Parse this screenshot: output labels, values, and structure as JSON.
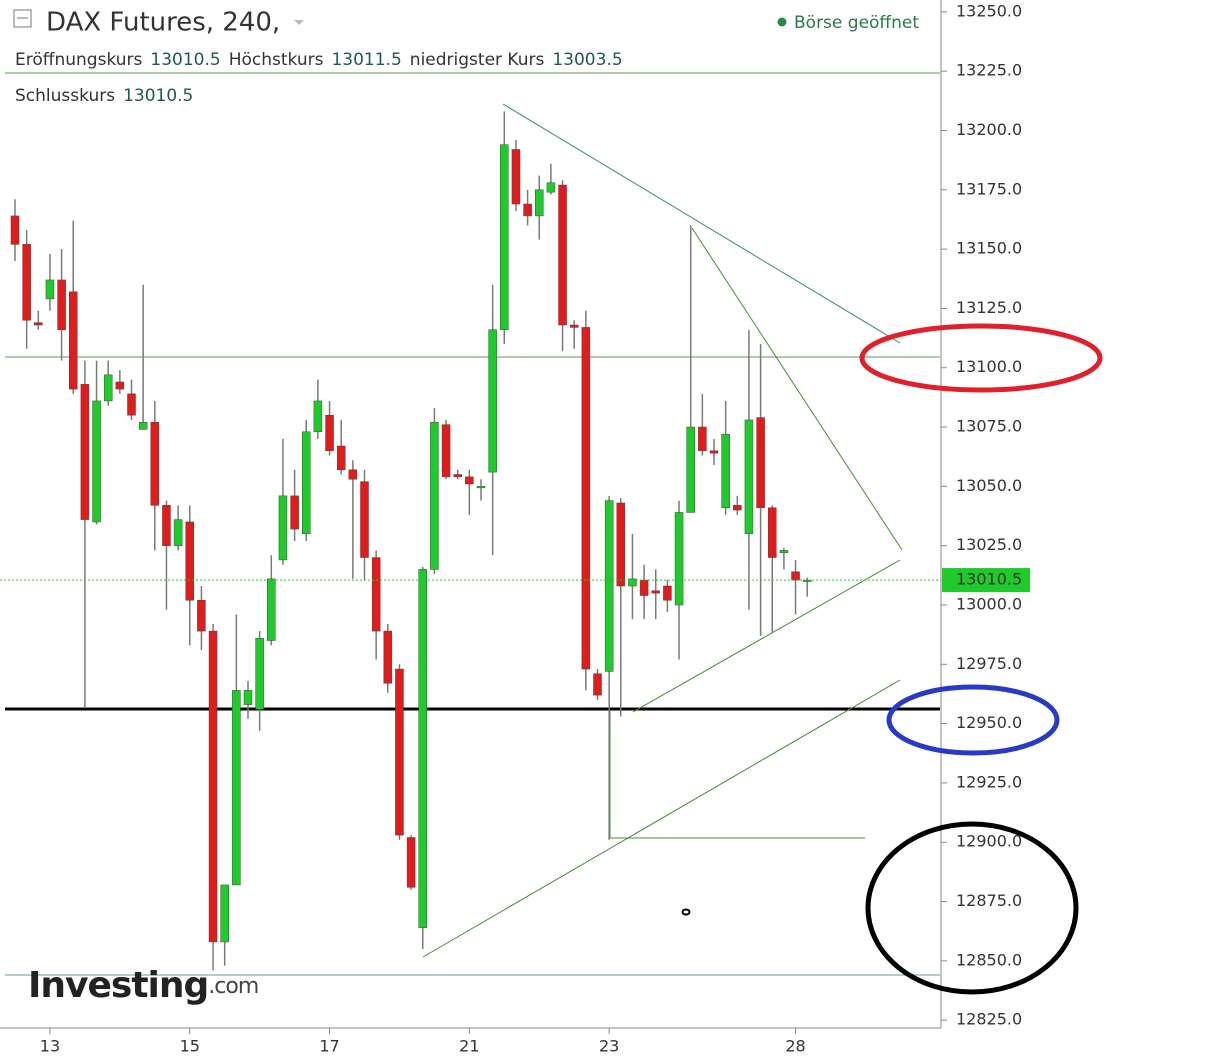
{
  "chart_data": {
    "type": "candlestick",
    "title": "DAX Futures, 240,",
    "status": "Börse geöffnet",
    "labels": {
      "open": "Eröffnungskurs",
      "high": "Höchstkurs",
      "low": "niedrigster Kurs",
      "close": "Schlusskurs"
    },
    "logo": {
      "name": "Investing",
      "suffix": ".com"
    },
    "categories": [
      null,
      null,
      null,
      "13",
      null,
      null,
      null,
      null,
      null,
      null,
      null,
      null,
      null,
      null,
      null,
      "15",
      null,
      null,
      null,
      null,
      null,
      null,
      null,
      null,
      null,
      null,
      null,
      "17",
      null,
      null,
      null,
      null,
      null,
      null,
      null,
      null,
      null,
      null,
      null,
      "21",
      null,
      null,
      null,
      null,
      null,
      null,
      null,
      null,
      null,
      null,
      null,
      "23",
      null,
      null,
      null,
      null,
      null,
      null,
      null,
      null,
      null,
      null,
      null,
      null,
      null,
      null,
      null,
      "28",
      null
    ],
    "open": [
      13164,
      13152,
      13119,
      13129,
      13137,
      13132,
      13093,
      13035,
      13086,
      13094,
      13089,
      13074,
      13077,
      13042,
      13025,
      13035,
      13002,
      12989,
      12858,
      12882,
      12958,
      12956,
      12985,
      13019,
      13046,
      13030,
      13073,
      13080,
      13067,
      13057,
      13052,
      13020,
      12989,
      12973,
      12902,
      12864,
      13015,
      13076,
      13055,
      13054,
      13049.5,
      13056,
      13116,
      13192,
      13169,
      13164,
      13174,
      13177,
      13118,
      13117,
      12971,
      12972,
      13043,
      13008,
      13010.5,
      13006,
      13008,
      13000,
      13039,
      13075,
      13065,
      13041,
      13042,
      13030,
      13079,
      13041,
      13022,
      13014,
      13010.5
    ],
    "high": [
      13171,
      13158,
      13124,
      13148,
      13150,
      13162,
      13103,
      13103,
      13103,
      13099,
      13095,
      13135,
      13086,
      13044,
      13042,
      13042,
      13008,
      12992,
      12882,
      12996,
      12968,
      12989,
      13021,
      13070,
      13057,
      13078,
      13095,
      13086,
      13078,
      13061,
      13057,
      13023,
      12992,
      12975,
      12903,
      13016,
      13083,
      13078,
      13057,
      13057,
      13053,
      13135,
      13208,
      13196,
      13175,
      13181,
      13186,
      13179,
      13120,
      13124,
      12973,
      13046,
      13045,
      13030,
      13017,
      13015,
      13010.5,
      13044,
      13160,
      13089,
      13070,
      13086,
      13046,
      13116,
      13110,
      13042,
      13024,
      13019,
      13011.5
    ],
    "low": [
      13145,
      13108,
      13116,
      13124,
      13103,
      13089,
      12957,
      13034,
      13084,
      13089,
      13078,
      13074,
      13023,
      12998,
      13023,
      12983,
      12981,
      12846,
      12848,
      12882,
      12952,
      12947,
      12983,
      13017,
      13027,
      13027,
      13070,
      13063,
      13055,
      13011,
      13010.5,
      12977,
      12963,
      12901,
      12880,
      12855,
      13013,
      13053,
      13053,
      13038,
      13044,
      13021,
      13110,
      13166,
      13160,
      13154,
      13173,
      13107,
      13108,
      12964,
      12960,
      12901,
      12953,
      12994,
      12994,
      12994,
      12997,
      12977,
      13039,
      13063,
      13059,
      13038,
      13038,
      12998,
      12987,
      12988,
      13015,
      12996,
      13003.5
    ],
    "close": [
      13152,
      13120,
      13118,
      13137,
      13116,
      13091,
      13036,
      13086,
      13097,
      13091,
      13080,
      13077,
      13042,
      13025,
      13036,
      13002,
      12989,
      12858,
      12882,
      12964,
      12964,
      12986,
      13011,
      13046,
      13032,
      13073,
      13086,
      13065,
      13057,
      13053,
      13020,
      12989,
      12967,
      12903,
      12881,
      13015,
      13077,
      13054,
      13054,
      13051,
      13050,
      13116,
      13194,
      13169,
      13164,
      13175,
      13178,
      13118,
      13117,
      12973,
      12962,
      13044,
      13008,
      13011,
      13004,
      13005,
      13002,
      13039,
      13075,
      13065,
      13064,
      13072,
      13040,
      13078,
      13041,
      13020,
      13023,
      13010.5,
      13010.5
    ],
    "up_color": "#1ecb2b",
    "down_color": "#e21b1b",
    "wick_color": "#7a7a7a",
    "ylim": [
      12821.7,
      13255
    ],
    "yticks": [
      {
        "value": 12825,
        "label": "12825.0"
      },
      {
        "value": 12850,
        "label": "12850.0"
      },
      {
        "value": 12875,
        "label": "12875.0"
      },
      {
        "value": 12900,
        "label": "12900.0"
      },
      {
        "value": 12925,
        "label": "12925.0"
      },
      {
        "value": 12950,
        "label": "12950.0"
      },
      {
        "value": 12975,
        "label": "12975.0"
      },
      {
        "value": 13000,
        "label": "13000.0"
      },
      {
        "value": 13025,
        "label": "13025.0"
      },
      {
        "value": 13050,
        "label": "13050.0"
      },
      {
        "value": 13075,
        "label": "13075.0"
      },
      {
        "value": 13100,
        "label": "13100.0"
      },
      {
        "value": 13125,
        "label": "13125.0"
      },
      {
        "value": 13150,
        "label": "13150.0"
      },
      {
        "value": 13175,
        "label": "13175.0"
      },
      {
        "value": 13200,
        "label": "13200.0"
      },
      {
        "value": 13225,
        "label": "13225.0"
      },
      {
        "value": 13250,
        "label": "13250.0"
      }
    ]
  }
}
